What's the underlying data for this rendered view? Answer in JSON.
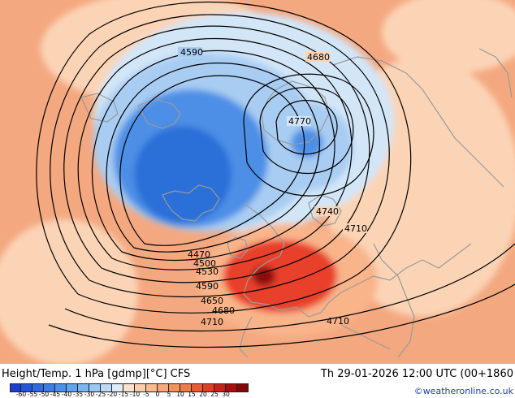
{
  "map": {
    "contour_labels": [
      {
        "text": "4590",
        "id": "4590-top"
      },
      {
        "text": "4680",
        "id": "4680-top"
      },
      {
        "text": "4770",
        "id": "4770"
      },
      {
        "text": "4740",
        "id": "4740"
      },
      {
        "text": "4710",
        "id": "4710-right"
      },
      {
        "text": "4470",
        "id": "4470"
      },
      {
        "text": "4500",
        "id": "4500"
      },
      {
        "text": "4530",
        "id": "4530"
      },
      {
        "text": "4590",
        "id": "4590-low"
      },
      {
        "text": "4650",
        "id": "4650"
      },
      {
        "text": "4680",
        "id": "4680-low"
      },
      {
        "text": "4710",
        "id": "4710-left"
      },
      {
        "text": "4710",
        "id": "4710-low-right"
      }
    ],
    "colors": {
      "background": "#f4a880",
      "deep_blue": "#2a6fd8",
      "mid_blue": "#4d8fe6",
      "light_blue": "#a9cdf2",
      "pale_blue": "#d2e6f8",
      "warm": "#f9b48a",
      "pale_warm": "#fbd4b6",
      "red": "#e8402a",
      "dark_red": "#8a1010",
      "coast": "#9a9a9a",
      "contour": "#000000"
    }
  },
  "footer": {
    "title_left": "Height/Temp. 1 hPa [gdmp][°C] CFS",
    "title_right": "Th 29-01-2026 12:00 UTC (00+1860",
    "credit": "©weatheronline.co.uk"
  },
  "colorbar": {
    "colors": [
      "#1a3ecf",
      "#2654dc",
      "#3168e4",
      "#3e7ce8",
      "#4c90ec",
      "#5ea4ef",
      "#79b6f2",
      "#9ac8f4",
      "#bcdaf6",
      "#dcecfa",
      "#fbe2cc",
      "#fbcfac",
      "#f9bc90",
      "#f7a876",
      "#f4925e",
      "#f07a48",
      "#e85c34",
      "#e03e26",
      "#c72218",
      "#a80f0e",
      "#860707"
    ],
    "labels": [
      "-60",
      "-55",
      "-50",
      "-45",
      "-40",
      "-35",
      "-30",
      "-25",
      "-20",
      "-15",
      "-10",
      "-5",
      "0",
      "5",
      "10",
      "15",
      "20",
      "25",
      "30"
    ]
  }
}
